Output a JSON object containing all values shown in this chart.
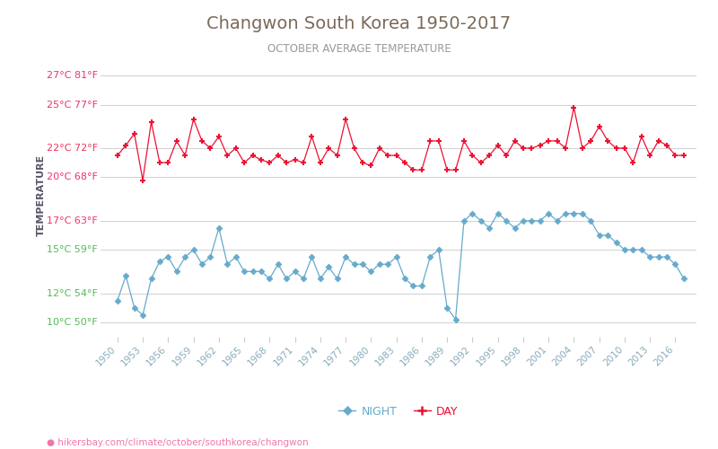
{
  "title": "Changwon South Korea 1950-2017",
  "subtitle": "OCTOBER AVERAGE TEMPERATURE",
  "xlabel_url": "hikersbay.com/climate/october/southkorea/changwon",
  "ylabel": "TEMPERATURE",
  "title_color": "#7a6a5a",
  "subtitle_color": "#999999",
  "ylabel_color": "#555566",
  "bg_color": "#ffffff",
  "grid_color": "#d0d0d0",
  "yticks_celsius": [
    10,
    12,
    15,
    17,
    20,
    22,
    25,
    27
  ],
  "yticks_fahrenheit": [
    50,
    54,
    59,
    63,
    68,
    72,
    77,
    81
  ],
  "ytick_colors": [
    "#55bb55",
    "#55bb55",
    "#55bb55",
    "#ee3366",
    "#ee3366",
    "#ee3366",
    "#ee3366",
    "#ee3366"
  ],
  "years": [
    1950,
    1951,
    1952,
    1953,
    1954,
    1955,
    1956,
    1957,
    1958,
    1959,
    1960,
    1961,
    1962,
    1963,
    1964,
    1965,
    1966,
    1967,
    1968,
    1969,
    1970,
    1971,
    1972,
    1973,
    1974,
    1975,
    1976,
    1977,
    1978,
    1979,
    1980,
    1981,
    1982,
    1983,
    1984,
    1985,
    1986,
    1987,
    1988,
    1989,
    1990,
    1991,
    1992,
    1993,
    1994,
    1995,
    1996,
    1997,
    1998,
    1999,
    2000,
    2001,
    2002,
    2003,
    2004,
    2005,
    2006,
    2007,
    2008,
    2009,
    2010,
    2011,
    2012,
    2013,
    2014,
    2015,
    2016,
    2017
  ],
  "day_temps": [
    21.5,
    22.2,
    23.0,
    19.8,
    23.8,
    21.0,
    21.0,
    22.5,
    21.5,
    24.0,
    22.5,
    22.0,
    22.8,
    21.5,
    22.0,
    21.0,
    21.5,
    21.2,
    21.0,
    21.5,
    21.0,
    21.2,
    21.0,
    22.8,
    21.0,
    22.0,
    21.5,
    24.0,
    22.0,
    21.0,
    20.8,
    22.0,
    21.5,
    21.5,
    21.0,
    20.5,
    20.5,
    22.5,
    22.5,
    20.5,
    20.5,
    22.5,
    21.5,
    21.0,
    21.5,
    22.2,
    21.5,
    22.5,
    22.0,
    22.0,
    22.2,
    22.5,
    22.5,
    22.0,
    24.8,
    22.0,
    22.5,
    23.5,
    22.5,
    22.0,
    22.0,
    21.0,
    22.8,
    21.5,
    22.5,
    22.2,
    21.5,
    21.5
  ],
  "night_temps": [
    11.5,
    13.2,
    11.0,
    10.5,
    13.0,
    14.2,
    14.5,
    13.5,
    14.5,
    15.0,
    14.0,
    14.5,
    16.5,
    14.0,
    14.5,
    13.5,
    13.5,
    13.5,
    13.0,
    14.0,
    13.0,
    13.5,
    13.0,
    14.5,
    13.0,
    13.8,
    13.0,
    14.5,
    14.0,
    14.0,
    13.5,
    14.0,
    14.0,
    14.5,
    13.0,
    12.5,
    12.5,
    14.5,
    15.0,
    11.0,
    10.2,
    17.0,
    17.5,
    17.0,
    16.5,
    17.5,
    17.0,
    16.5,
    17.0,
    17.0,
    17.0,
    17.5,
    17.0,
    17.5,
    17.5,
    17.5,
    17.0,
    16.0,
    16.0,
    15.5,
    15.0,
    15.0,
    15.0,
    14.5,
    14.5,
    14.5,
    14.0,
    13.0
  ],
  "day_color": "#ee1133",
  "night_color": "#66aacc",
  "legend_night": "NIGHT",
  "legend_day": "DAY",
  "ylim": [
    9.0,
    28.5
  ],
  "xlim_left": 1948.0,
  "xlim_right": 2018.5,
  "xtick_color": "#88aabb",
  "url_color": "#ee77aa",
  "xtick_years": [
    1950,
    1953,
    1956,
    1959,
    1962,
    1965,
    1968,
    1971,
    1974,
    1977,
    1980,
    1983,
    1986,
    1989,
    1992,
    1995,
    1998,
    2001,
    2004,
    2007,
    2010,
    2013,
    2016
  ]
}
